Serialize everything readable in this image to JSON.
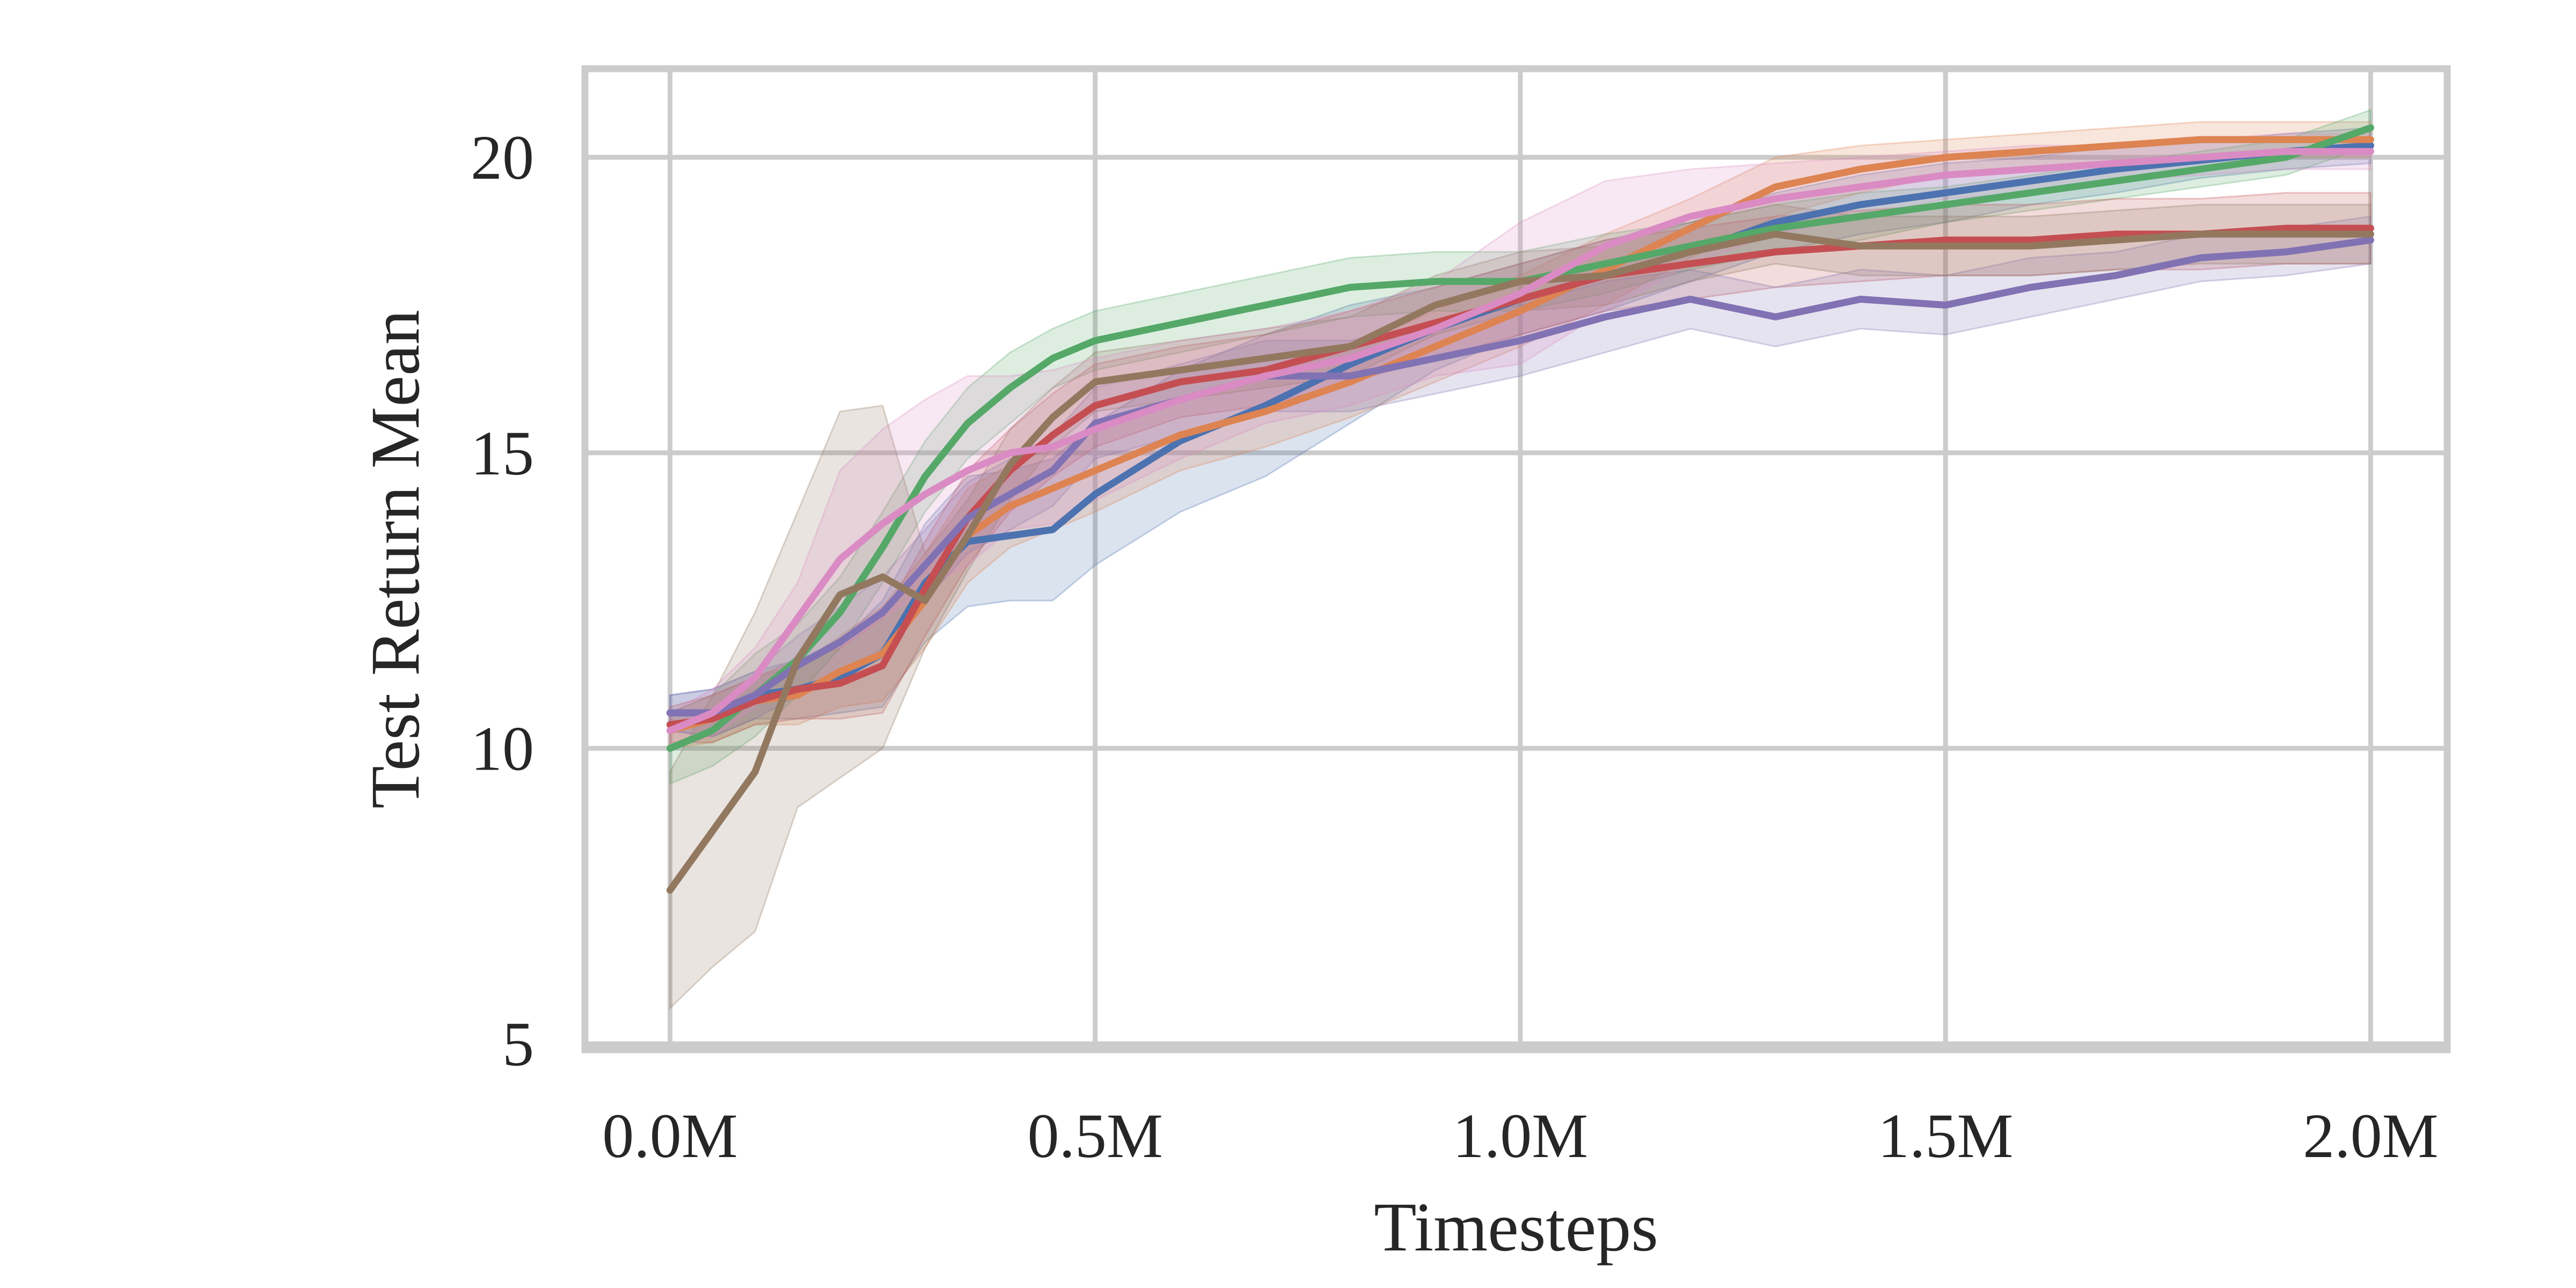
{
  "chart_data": {
    "type": "line",
    "xlabel": "Timesteps",
    "ylabel": "Test Return Mean",
    "xlim": [
      -0.1,
      2.09
    ],
    "ylim": [
      4.9,
      21.5
    ],
    "xticks": [
      0.0,
      0.5,
      1.0,
      1.5,
      2.0
    ],
    "xtick_labels": [
      "0.0M",
      "0.5M",
      "1.0M",
      "1.5M",
      "2.0M"
    ],
    "yticks": [
      5,
      10,
      15,
      20
    ],
    "ytick_labels": [
      "5",
      "10",
      "15",
      "20"
    ],
    "grid": true,
    "legend": "none",
    "x": [
      0.0,
      0.05,
      0.1,
      0.15,
      0.2,
      0.25,
      0.3,
      0.35,
      0.4,
      0.45,
      0.5,
      0.6,
      0.7,
      0.8,
      0.9,
      1.0,
      1.1,
      1.2,
      1.3,
      1.4,
      1.5,
      1.6,
      1.7,
      1.8,
      1.9,
      2.0
    ],
    "series": [
      {
        "color": "#4c72b0",
        "values": [
          10.6,
          10.6,
          10.9,
          11.0,
          11.2,
          11.6,
          12.8,
          13.5,
          13.6,
          13.7,
          14.3,
          15.2,
          15.8,
          16.5,
          17.1,
          17.6,
          18.0,
          18.4,
          18.9,
          19.2,
          19.4,
          19.6,
          19.8,
          19.95,
          20.1,
          20.2
        ],
        "band": [
          0.3,
          0.4,
          0.4,
          0.5,
          0.6,
          0.9,
          1.0,
          1.1,
          1.1,
          1.2,
          1.2,
          1.2,
          1.2,
          1.0,
          0.7,
          0.6,
          0.6,
          0.5,
          0.5,
          0.5,
          0.5,
          0.4,
          0.4,
          0.3,
          0.3,
          0.3
        ]
      },
      {
        "color": "#dd8452",
        "values": [
          10.3,
          10.5,
          10.8,
          10.9,
          11.3,
          11.6,
          12.5,
          13.6,
          14.1,
          14.4,
          14.7,
          15.3,
          15.7,
          16.2,
          16.8,
          17.4,
          18.1,
          18.8,
          19.5,
          19.8,
          20.0,
          20.1,
          20.2,
          20.3,
          20.3,
          20.3
        ],
        "band": [
          0.3,
          0.4,
          0.4,
          0.5,
          0.6,
          0.8,
          0.8,
          0.8,
          0.7,
          0.7,
          0.7,
          0.6,
          0.6,
          0.6,
          0.6,
          0.6,
          0.6,
          0.5,
          0.5,
          0.4,
          0.3,
          0.3,
          0.3,
          0.3,
          0.3,
          0.3
        ]
      },
      {
        "color": "#55a868",
        "values": [
          10.0,
          10.3,
          10.9,
          11.5,
          12.3,
          13.4,
          14.6,
          15.5,
          16.1,
          16.6,
          16.9,
          17.2,
          17.5,
          17.8,
          17.9,
          17.9,
          18.2,
          18.5,
          18.8,
          19.0,
          19.2,
          19.4,
          19.6,
          19.8,
          20.0,
          20.5
        ],
        "band": [
          0.6,
          0.6,
          0.7,
          0.6,
          0.6,
          0.6,
          0.6,
          0.6,
          0.6,
          0.5,
          0.5,
          0.5,
          0.5,
          0.5,
          0.5,
          0.5,
          0.5,
          0.4,
          0.4,
          0.4,
          0.3,
          0.3,
          0.3,
          0.3,
          0.3,
          0.3
        ]
      },
      {
        "color": "#c44e52",
        "values": [
          10.4,
          10.5,
          10.8,
          11.0,
          11.1,
          11.4,
          12.7,
          13.9,
          14.7,
          15.3,
          15.8,
          16.2,
          16.4,
          16.8,
          17.2,
          17.6,
          18.0,
          18.2,
          18.4,
          18.5,
          18.6,
          18.6,
          18.7,
          18.7,
          18.8,
          18.8
        ],
        "band": [
          0.3,
          0.4,
          0.4,
          0.5,
          0.6,
          0.8,
          0.8,
          0.8,
          0.7,
          0.7,
          0.7,
          0.6,
          0.6,
          0.6,
          0.6,
          0.6,
          0.6,
          0.6,
          0.6,
          0.6,
          0.6,
          0.6,
          0.6,
          0.6,
          0.6,
          0.6
        ]
      },
      {
        "color": "#8172b3",
        "values": [
          10.6,
          10.6,
          10.9,
          11.4,
          11.8,
          12.3,
          13.1,
          13.9,
          14.3,
          14.7,
          15.5,
          15.9,
          16.3,
          16.3,
          16.6,
          16.9,
          17.3,
          17.6,
          17.3,
          17.6,
          17.5,
          17.8,
          18.0,
          18.3,
          18.4,
          18.6
        ],
        "band": [
          0.3,
          0.4,
          0.4,
          0.5,
          0.6,
          0.6,
          0.6,
          0.6,
          0.6,
          0.6,
          0.6,
          0.6,
          0.6,
          0.6,
          0.6,
          0.6,
          0.6,
          0.5,
          0.5,
          0.5,
          0.5,
          0.5,
          0.4,
          0.4,
          0.4,
          0.4
        ]
      },
      {
        "color": "#937860",
        "values": [
          7.6,
          8.6,
          9.6,
          11.5,
          12.6,
          12.9,
          12.5,
          13.6,
          14.8,
          15.6,
          16.2,
          16.4,
          16.6,
          16.8,
          17.5,
          17.9,
          18.0,
          18.4,
          18.7,
          18.5,
          18.5,
          18.5,
          18.6,
          18.7,
          18.7,
          18.7
        ],
        "band": [
          2.0,
          2.3,
          2.7,
          2.5,
          3.1,
          2.9,
          0.8,
          0.6,
          0.6,
          0.5,
          0.5,
          0.5,
          0.5,
          0.5,
          0.5,
          0.5,
          0.5,
          0.5,
          0.5,
          0.5,
          0.5,
          0.5,
          0.5,
          0.5,
          0.5,
          0.5
        ]
      },
      {
        "color": "#da8bc3",
        "values": [
          10.3,
          10.6,
          11.2,
          12.2,
          13.2,
          13.8,
          14.3,
          14.7,
          15.0,
          15.1,
          15.4,
          15.9,
          16.3,
          16.6,
          17.1,
          17.7,
          18.5,
          19.0,
          19.3,
          19.5,
          19.7,
          19.8,
          19.9,
          20.0,
          20.1,
          20.1
        ],
        "band": [
          0.3,
          0.4,
          0.5,
          0.6,
          1.5,
          1.6,
          1.6,
          1.6,
          1.3,
          1.3,
          1.2,
          1.0,
          0.8,
          0.8,
          0.8,
          1.2,
          1.1,
          0.8,
          0.6,
          0.5,
          0.4,
          0.4,
          0.3,
          0.3,
          0.3,
          0.3
        ]
      }
    ],
    "colors": {
      "grid": "#cccccc",
      "text": "#262626",
      "background": "#ffffff"
    }
  }
}
